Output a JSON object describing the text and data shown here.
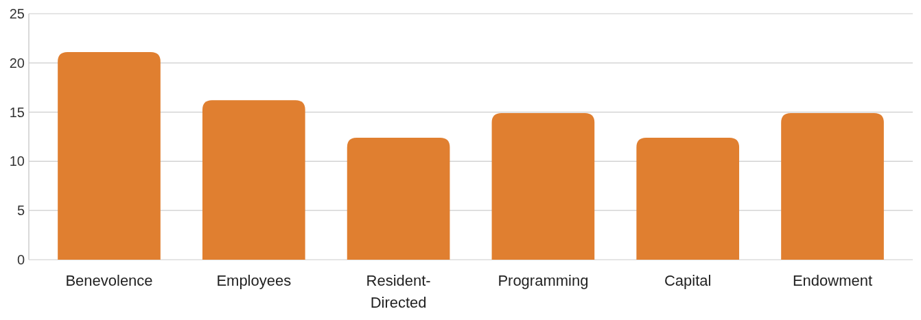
{
  "chart_data": {
    "type": "bar",
    "categories": [
      "Benevolence",
      "Employees",
      "Resident-Directed",
      "Programming",
      "Capital",
      "Endowment"
    ],
    "values": [
      21.1,
      16.2,
      12.4,
      14.9,
      12.4,
      14.9
    ],
    "color": "#e07f30",
    "ylim": [
      0,
      25
    ],
    "yticks": [
      0,
      5,
      10,
      15,
      20,
      25
    ],
    "grid": "y"
  }
}
